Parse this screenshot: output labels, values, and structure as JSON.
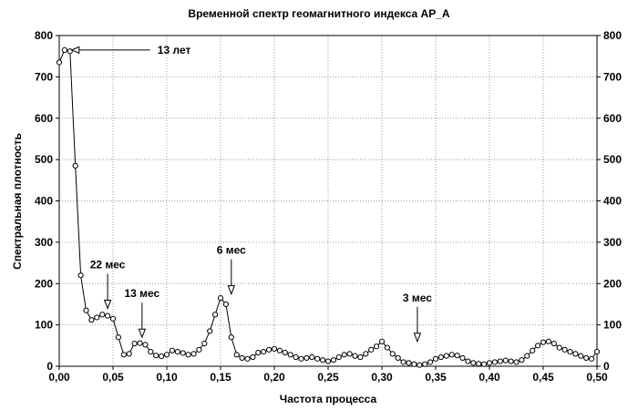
{
  "chart_data": {
    "type": "line",
    "title": "Временной спектр геомагнитного индекса AP_A",
    "xlabel": "Частота процесса",
    "ylabel": "Спектральная плотность",
    "xlim": [
      0,
      0.5
    ],
    "ylim": [
      0,
      800
    ],
    "x_ticks": [
      "0,00",
      "0,05",
      "0,10",
      "0,15",
      "0,20",
      "0,25",
      "0,30",
      "0,35",
      "0,40",
      "0,45",
      "0,50"
    ],
    "y_ticks": [
      "0",
      "100",
      "200",
      "300",
      "400",
      "500",
      "600",
      "700",
      "800"
    ],
    "grid": true,
    "series": [
      {
        "x": [
          0.0,
          0.005,
          0.01,
          0.015,
          0.02,
          0.025,
          0.03,
          0.035,
          0.04,
          0.045,
          0.05,
          0.055,
          0.06,
          0.065,
          0.07,
          0.075,
          0.08,
          0.085,
          0.09,
          0.095,
          0.1,
          0.105,
          0.11,
          0.115,
          0.12,
          0.125,
          0.13,
          0.135,
          0.14,
          0.145,
          0.15,
          0.155,
          0.16,
          0.165,
          0.17,
          0.175,
          0.18,
          0.185,
          0.19,
          0.195,
          0.2,
          0.205,
          0.21,
          0.215,
          0.22,
          0.225,
          0.23,
          0.235,
          0.24,
          0.245,
          0.25,
          0.255,
          0.26,
          0.265,
          0.27,
          0.275,
          0.28,
          0.285,
          0.29,
          0.295,
          0.3,
          0.305,
          0.31,
          0.315,
          0.32,
          0.325,
          0.33,
          0.335,
          0.34,
          0.345,
          0.35,
          0.355,
          0.36,
          0.365,
          0.37,
          0.375,
          0.38,
          0.385,
          0.39,
          0.395,
          0.4,
          0.405,
          0.41,
          0.415,
          0.42,
          0.425,
          0.43,
          0.435,
          0.44,
          0.445,
          0.45,
          0.455,
          0.46,
          0.465,
          0.47,
          0.475,
          0.48,
          0.485,
          0.49,
          0.495,
          0.5
        ],
        "y": [
          735,
          765,
          762,
          485,
          220,
          135,
          112,
          118,
          125,
          122,
          115,
          70,
          28,
          30,
          55,
          56,
          52,
          35,
          26,
          24,
          28,
          38,
          35,
          32,
          28,
          30,
          40,
          55,
          85,
          125,
          165,
          150,
          70,
          28,
          20,
          18,
          22,
          33,
          35,
          40,
          42,
          38,
          33,
          28,
          22,
          18,
          20,
          22,
          18,
          15,
          12,
          15,
          22,
          28,
          30,
          25,
          22,
          30,
          40,
          48,
          60,
          45,
          30,
          20,
          10,
          8,
          5,
          3,
          5,
          10,
          18,
          22,
          25,
          28,
          26,
          20,
          12,
          8,
          6,
          5,
          8,
          10,
          12,
          14,
          12,
          10,
          15,
          25,
          38,
          50,
          58,
          60,
          55,
          45,
          40,
          35,
          30,
          25,
          20,
          18,
          35
        ]
      }
    ],
    "annotations": [
      {
        "text": "13 лет",
        "x": 0.01,
        "y": 765,
        "direction": "left"
      },
      {
        "text": "22 мес",
        "x": 0.045,
        "y": 140,
        "direction": "down"
      },
      {
        "text": "13 мес",
        "x": 0.077,
        "y": 70,
        "direction": "down"
      },
      {
        "text": "6 мес",
        "x": 0.16,
        "y": 175,
        "direction": "down"
      },
      {
        "text": "3 мес",
        "x": 0.333,
        "y": 60,
        "direction": "down"
      }
    ]
  }
}
